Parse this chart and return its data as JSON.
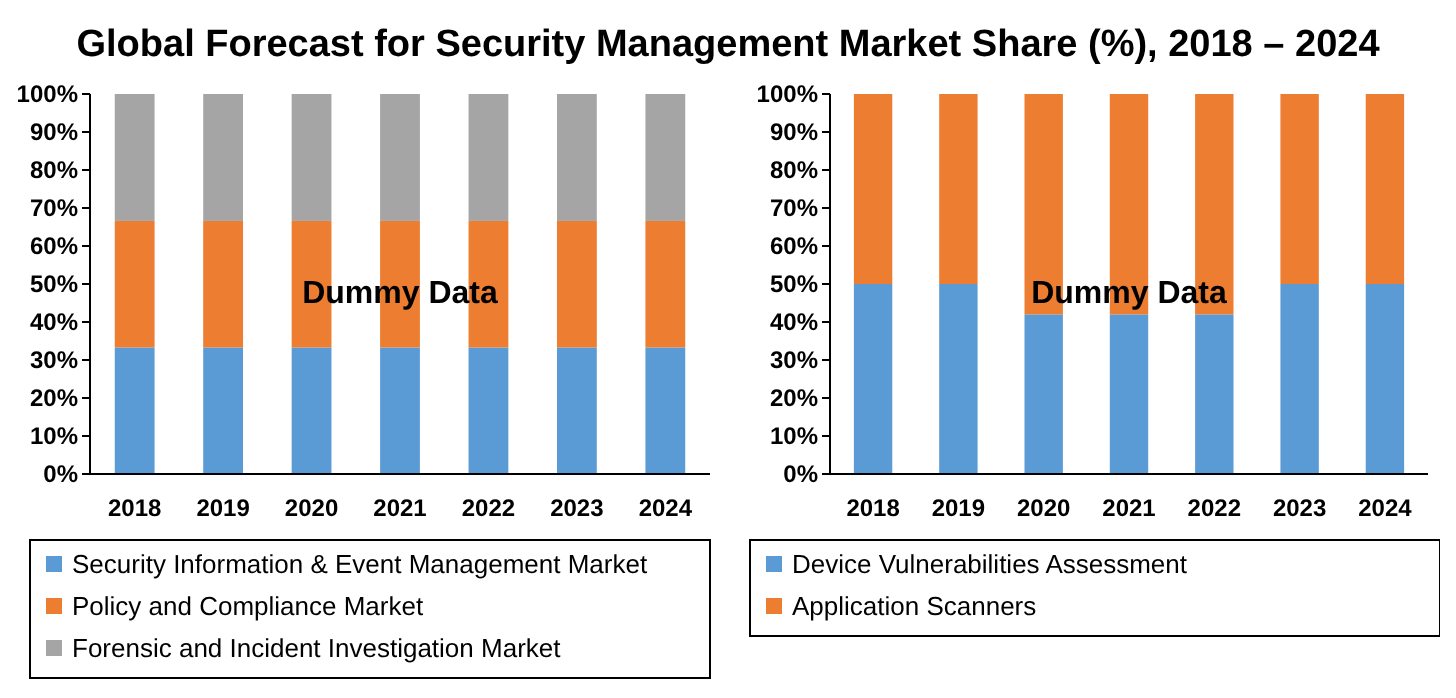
{
  "chart_data": [
    {
      "type": "bar",
      "title": "Global Forecast for Security Management Market Share (%), 2018 – 2024",
      "stacked": true,
      "categories": [
        "2018",
        "2019",
        "2020",
        "2021",
        "2022",
        "2023",
        "2024"
      ],
      "series": [
        {
          "name": "Security Information & Event Management Market",
          "color": "#5b9bd5",
          "values": [
            33.3,
            33.3,
            33.3,
            33.3,
            33.3,
            33.3,
            33.3
          ]
        },
        {
          "name": "Policy and Compliance Market",
          "color": "#ed7d31",
          "values": [
            33.3,
            33.3,
            33.3,
            33.3,
            33.3,
            33.3,
            33.3
          ]
        },
        {
          "name": "Forensic and Incident Investigation Market",
          "color": "#a5a5a5",
          "values": [
            33.4,
            33.4,
            33.4,
            33.4,
            33.4,
            33.4,
            33.4
          ]
        }
      ],
      "ylim": [
        0,
        100
      ],
      "yticks": [
        {
          "value": 0,
          "label": "0%"
        },
        {
          "value": 10,
          "label": "10%"
        },
        {
          "value": 20,
          "label": "20%"
        },
        {
          "value": 30,
          "label": "30%"
        },
        {
          "value": 40,
          "label": "40%"
        },
        {
          "value": 50,
          "label": "50%"
        },
        {
          "value": 60,
          "label": "60%"
        },
        {
          "value": 70,
          "label": "70%"
        },
        {
          "value": 80,
          "label": "80%"
        },
        {
          "value": 90,
          "label": "90%"
        },
        {
          "value": 100,
          "label": "100%"
        }
      ],
      "annotations": [
        "Dummy Data"
      ],
      "legend": "bottom"
    },
    {
      "type": "bar",
      "stacked": true,
      "categories": [
        "2018",
        "2019",
        "2020",
        "2021",
        "2022",
        "2023",
        "2024"
      ],
      "series": [
        {
          "name": "Device Vulnerabilities Assessment",
          "color": "#5b9bd5",
          "values": [
            50,
            50,
            42,
            42,
            42,
            50,
            50
          ]
        },
        {
          "name": "Application Scanners",
          "color": "#ed7d31",
          "values": [
            50,
            50,
            58,
            58,
            58,
            50,
            50
          ]
        }
      ],
      "ylim": [
        0,
        100
      ],
      "yticks": [
        {
          "value": 0,
          "label": "0%"
        },
        {
          "value": 10,
          "label": "10%"
        },
        {
          "value": 20,
          "label": "20%"
        },
        {
          "value": 30,
          "label": "30%"
        },
        {
          "value": 40,
          "label": "40%"
        },
        {
          "value": 50,
          "label": "50%"
        },
        {
          "value": 60,
          "label": "60%"
        },
        {
          "value": 70,
          "label": "70%"
        },
        {
          "value": 80,
          "label": "80%"
        },
        {
          "value": 90,
          "label": "90%"
        },
        {
          "value": 100,
          "label": "100%"
        }
      ],
      "annotations": [
        "Dummy Data"
      ],
      "legend": "bottom"
    }
  ]
}
